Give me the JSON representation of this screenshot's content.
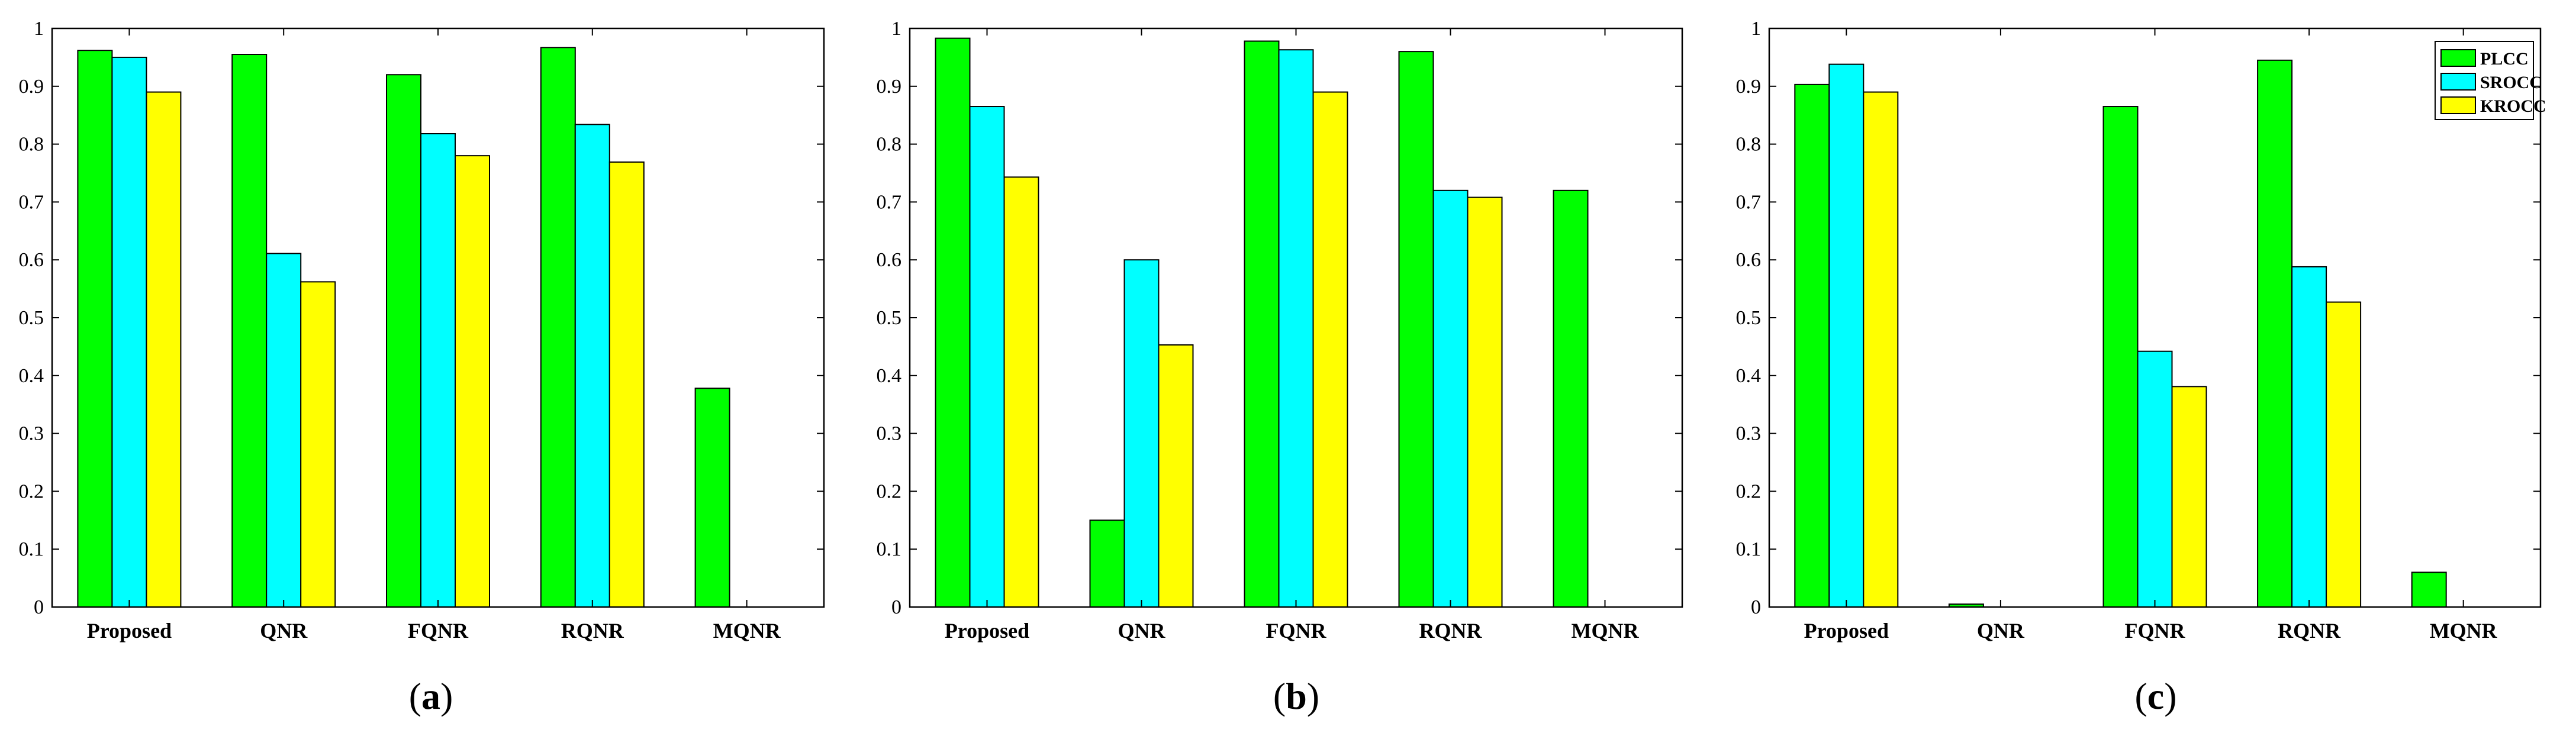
{
  "chart_data": [
    {
      "type": "bar",
      "panel_label": "(a)",
      "categories": [
        "Proposed",
        "QNR",
        "FQNR",
        "RQNR",
        "MQNR"
      ],
      "ylim": [
        0,
        1
      ],
      "yticks": [
        "0",
        "0.1",
        "0.2",
        "0.3",
        "0.4",
        "0.5",
        "0.6",
        "0.7",
        "0.8",
        "0.9",
        "1"
      ],
      "series": [
        {
          "name": "PLCC",
          "color": "#00FF00",
          "values": [
            0.962,
            0.955,
            0.92,
            0.967,
            0.378
          ]
        },
        {
          "name": "SROCC",
          "color": "#00FFFF",
          "values": [
            0.95,
            0.611,
            0.818,
            0.834,
            null
          ]
        },
        {
          "name": "KROCC",
          "color": "#FFFF00",
          "values": [
            0.89,
            0.562,
            0.78,
            0.769,
            null
          ]
        }
      ],
      "show_legend": false
    },
    {
      "type": "bar",
      "panel_label": "(b)",
      "categories": [
        "Proposed",
        "QNR",
        "FQNR",
        "RQNR",
        "MQNR"
      ],
      "ylim": [
        0,
        1
      ],
      "yticks": [
        "0",
        "0.1",
        "0.2",
        "0.3",
        "0.4",
        "0.5",
        "0.6",
        "0.7",
        "0.8",
        "0.9",
        "1"
      ],
      "series": [
        {
          "name": "PLCC",
          "color": "#00FF00",
          "values": [
            0.983,
            0.15,
            0.978,
            0.96,
            0.72
          ]
        },
        {
          "name": "SROCC",
          "color": "#00FFFF",
          "values": [
            0.865,
            0.6,
            0.963,
            0.72,
            null
          ]
        },
        {
          "name": "KROCC",
          "color": "#FFFF00",
          "values": [
            0.743,
            0.453,
            0.89,
            0.708,
            null
          ]
        }
      ],
      "show_legend": false
    },
    {
      "type": "bar",
      "panel_label": "(c)",
      "categories": [
        "Proposed",
        "QNR",
        "FQNR",
        "RQNR",
        "MQNR"
      ],
      "ylim": [
        0,
        1
      ],
      "yticks": [
        "0",
        "0.1",
        "0.2",
        "0.3",
        "0.4",
        "0.5",
        "0.6",
        "0.7",
        "0.8",
        "0.9",
        "1"
      ],
      "series": [
        {
          "name": "PLCC",
          "color": "#00FF00",
          "values": [
            0.903,
            0.005,
            0.865,
            0.945,
            0.06
          ]
        },
        {
          "name": "SROCC",
          "color": "#00FFFF",
          "values": [
            0.938,
            null,
            0.442,
            0.588,
            null
          ]
        },
        {
          "name": "KROCC",
          "color": "#FFFF00",
          "values": [
            0.89,
            null,
            0.381,
            0.527,
            null
          ]
        }
      ],
      "show_legend": true,
      "legend_position": "top-right"
    }
  ]
}
